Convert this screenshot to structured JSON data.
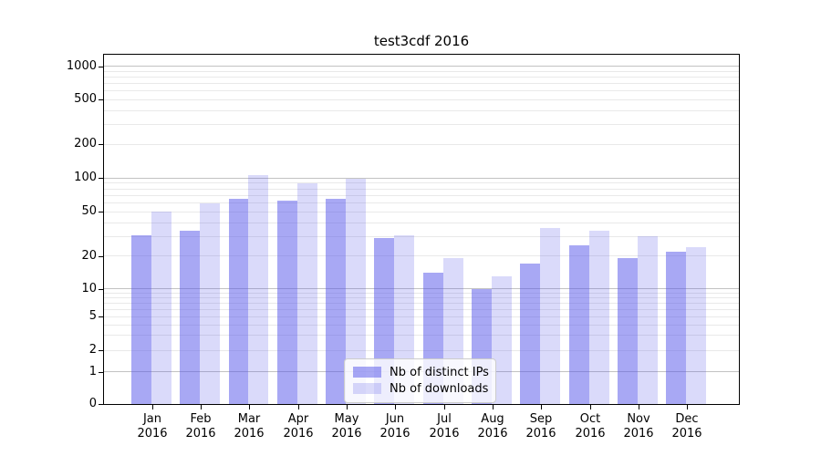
{
  "title": "test3cdf 2016",
  "colors": {
    "distinct_ips": "rgba(82,82,233,0.50)",
    "downloads": "rgba(82,82,233,0.21)",
    "axis": "#000000"
  },
  "legend": {
    "items": [
      {
        "label": "Nb of distinct IPs",
        "series_key": "distinct_ips"
      },
      {
        "label": "Nb of downloads",
        "series_key": "downloads"
      }
    ]
  },
  "chart_data": {
    "type": "bar",
    "title": "test3cdf 2016",
    "categories": [
      "Jan",
      "Feb",
      "Mar",
      "Apr",
      "May",
      "Jun",
      "Jul",
      "Aug",
      "Sep",
      "Oct",
      "Nov",
      "Dec"
    ],
    "year_label": "2016",
    "series": [
      {
        "name": "Nb of distinct IPs",
        "color_key": "distinct_ips",
        "values": [
          31,
          34,
          65,
          63,
          65,
          29,
          14,
          10,
          17,
          25,
          19,
          22
        ]
      },
      {
        "name": "Nb of downloads",
        "color_key": "downloads",
        "values": [
          50,
          59,
          105,
          90,
          98,
          31,
          19,
          13,
          36,
          34,
          30,
          24
        ]
      }
    ],
    "yticks": [
      0,
      1,
      2,
      5,
      10,
      20,
      50,
      100,
      200,
      500,
      1000
    ],
    "minor_gridlines": [
      3,
      4,
      6,
      7,
      8,
      9,
      30,
      40,
      60,
      70,
      80,
      90,
      300,
      400,
      600,
      700,
      800,
      900
    ],
    "yscale": "log-with-zero",
    "ylim": [
      0,
      1400
    ],
    "xlabel": "",
    "ylabel": "",
    "grid": true,
    "legend_position": "lower-center"
  }
}
